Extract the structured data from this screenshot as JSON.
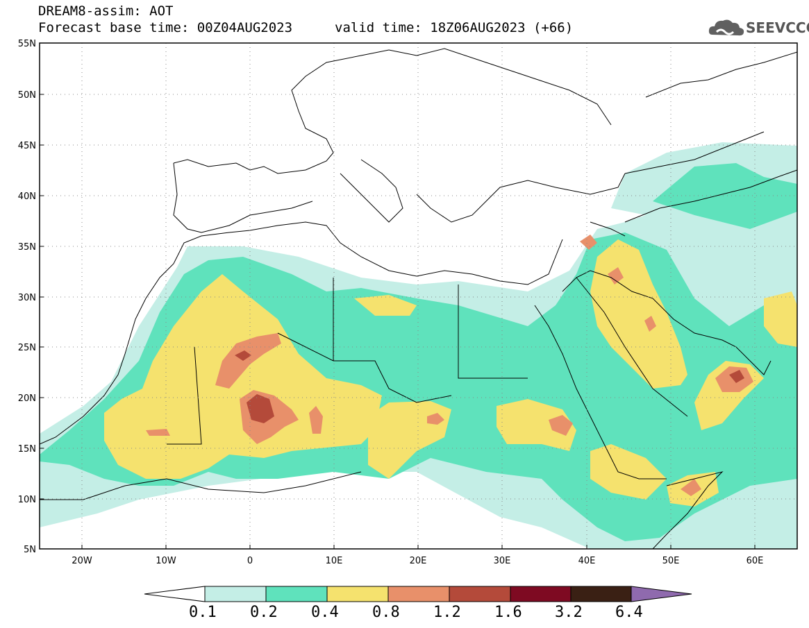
{
  "header": {
    "title": "DREAM8-assim: AOT",
    "base_time": "Forecast base time: 00Z04AUG2023",
    "valid_time": "valid time: 18Z06AUG2023 (+66)",
    "logo_text": "SEEVCCC",
    "logo_icon": "cloud-icon"
  },
  "axes": {
    "lat_labels": [
      "55N",
      "50N",
      "45N",
      "40N",
      "35N",
      "30N",
      "25N",
      "20N",
      "15N",
      "10N",
      "5N"
    ],
    "lon_labels": [
      "20W",
      "10W",
      "0",
      "10E",
      "20E",
      "30E",
      "40E",
      "50E",
      "60E"
    ],
    "lat_range": [
      5,
      55
    ],
    "lon_range": [
      -25,
      65
    ],
    "grid": "dotted"
  },
  "colorbar": {
    "labels": [
      "0.1",
      "0.2",
      "0.4",
      "0.8",
      "1.2",
      "1.6",
      "3.2",
      "6.4"
    ],
    "colors": [
      "#ffffff",
      "#c4eee6",
      "#5fe2bc",
      "#f5e26e",
      "#e8906a",
      "#b44a3a",
      "#7e0a22",
      "#3a2014",
      "#8f6aae"
    ]
  }
}
